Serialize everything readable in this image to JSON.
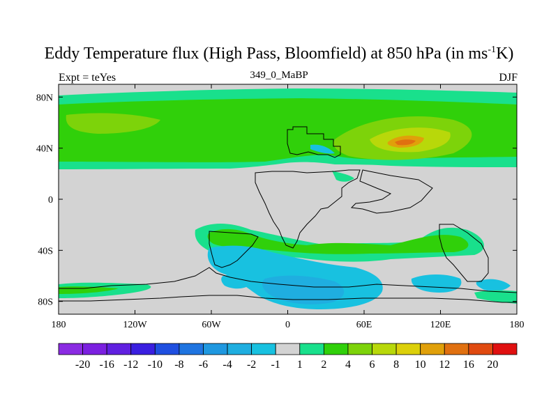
{
  "header": {
    "title_main": "Eddy Temperature flux (High Pass, Bloomfield) at 850 hPa (in ms",
    "title_sup": "-1",
    "title_end": "K)",
    "subtitle": "349_0_MaBP",
    "left_label": "Expt = teYes",
    "right_label": "DJF"
  },
  "map": {
    "background_color": "#d3d3d3",
    "lon_ticks": [
      "180",
      "120W",
      "60W",
      "0",
      "60E",
      "120E",
      "180"
    ],
    "lat_ticks": [
      "80N",
      "40N",
      "0",
      "40S",
      "80S"
    ]
  },
  "chart_data": {
    "type": "heatmap",
    "variable": "Eddy Temperature flux (High Pass, Bloomfield) at 850 hPa",
    "units": "ms-1K",
    "xlim": [
      -180,
      180
    ],
    "ylim": [
      -90,
      90
    ],
    "x_ticks": [
      -180,
      -120,
      -60,
      0,
      60,
      120,
      180
    ],
    "y_ticks": [
      80,
      40,
      0,
      -40,
      -80
    ],
    "colorbar": {
      "labels": [
        "-20",
        "-16",
        "-12",
        "-10",
        "-8",
        "-6",
        "-4",
        "-2",
        "-1",
        "1",
        "2",
        "4",
        "6",
        "8",
        "10",
        "12",
        "16",
        "20"
      ],
      "colors": [
        "#8a2be2",
        "#7b20e0",
        "#6020e0",
        "#3a1fe0",
        "#1f4fe0",
        "#1f74e0",
        "#1f98e0",
        "#1faee0",
        "#18c1e0",
        "#d3d3d3",
        "#19e08c",
        "#30d00a",
        "#7dd30a",
        "#b8d80a",
        "#dcd00a",
        "#e0a00a",
        "#e07010",
        "#e04a10",
        "#e01010"
      ]
    }
  }
}
